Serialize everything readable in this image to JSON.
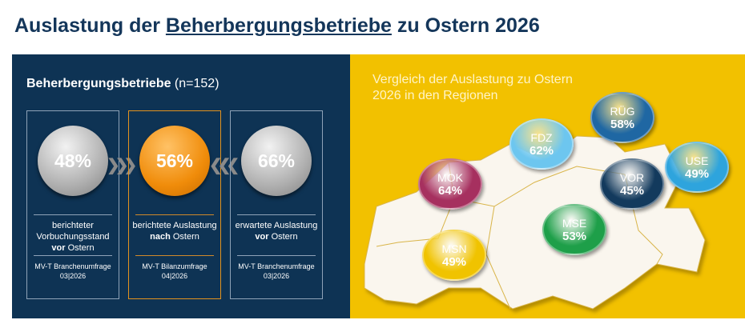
{
  "title": {
    "pre": "Auslastung der ",
    "underlined": "Beherbergungsbetriebe",
    "post": " zu Ostern 2026"
  },
  "left": {
    "subtitle_bold": "Beherbergungsbetriebe",
    "subtitle_rest": " (n=152)",
    "boxes": [
      {
        "value": "48%",
        "desc_1": "berichteter Vorbuchungsstand ",
        "desc_bold": "vor",
        "desc_2": " Ostern",
        "source": "MV-T Branchenumfrage",
        "date": "03|2026"
      },
      {
        "value": "56%",
        "desc_1": "berichtete Auslastung ",
        "desc_bold": "nach",
        "desc_2": " Ostern",
        "source": "MV-T Bilanzumfrage",
        "date": "04|2026"
      },
      {
        "value": "66%",
        "desc_1": "erwartete Auslastung ",
        "desc_bold": "vor",
        "desc_2": " Ostern",
        "source": "MV-T Branchenumfrage",
        "date": "03|2026"
      }
    ],
    "arrows": [
      "chevrons-right",
      "chevrons-left"
    ]
  },
  "right": {
    "title": "Vergleich der Auslastung zu Ostern 2026 in den Regionen",
    "regions": [
      {
        "name": "RÜG",
        "value": "58%",
        "color": "#1f67a3"
      },
      {
        "name": "FDZ",
        "value": "62%",
        "color": "#6dc6ef"
      },
      {
        "name": "MOK",
        "value": "64%",
        "color": "#a6305f"
      },
      {
        "name": "VOR",
        "value": "45%",
        "color": "#133a5d"
      },
      {
        "name": "USE",
        "value": "49%",
        "color": "#2ea4dd"
      },
      {
        "name": "MSE",
        "value": "53%",
        "color": "#1e9f49"
      },
      {
        "name": "MSN",
        "value": "49%",
        "color": "#f0c300"
      }
    ]
  }
}
